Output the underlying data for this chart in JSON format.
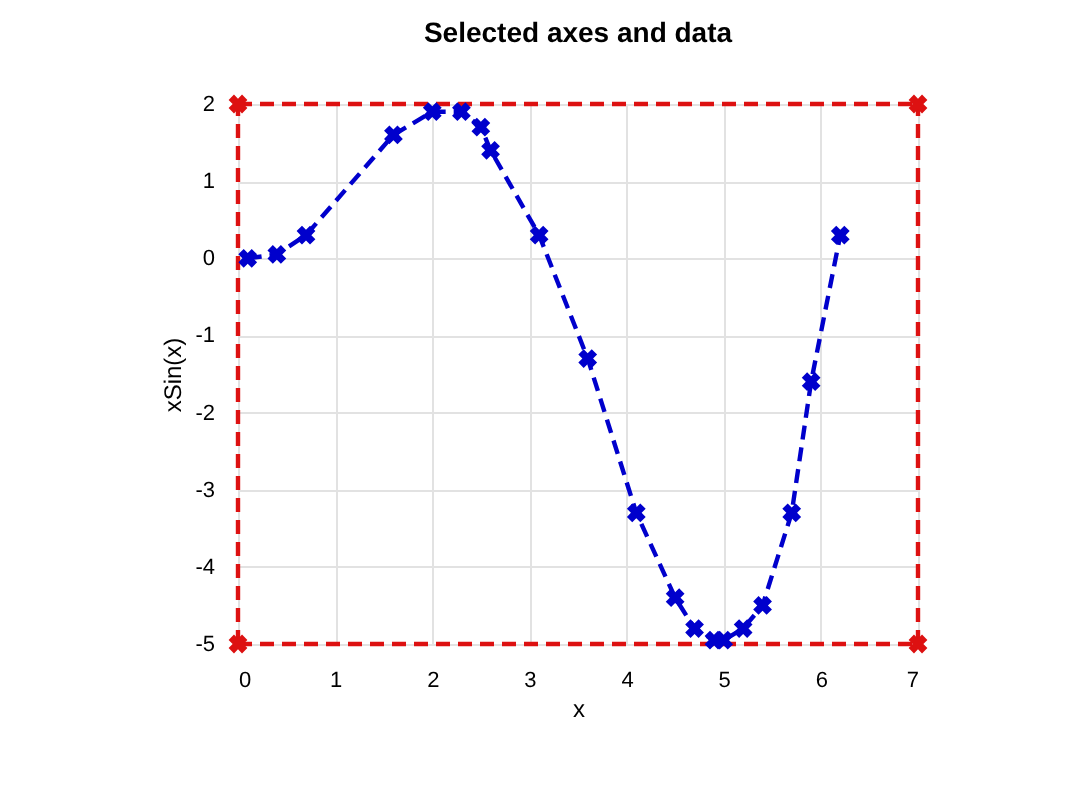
{
  "chart_data": {
    "type": "line",
    "title": "Selected axes and data",
    "xlabel": "x",
    "ylabel": "xSin(x)",
    "xlim": [
      0,
      7
    ],
    "xticks": [
      0,
      1,
      2,
      3,
      4,
      5,
      6,
      7
    ],
    "ylim": [
      -5,
      2
    ],
    "yticks": [
      -5,
      -4,
      -3,
      -2,
      -1,
      0,
      1,
      2
    ],
    "grid": true,
    "marker": "cross",
    "line_style": "dashed",
    "series": [
      {
        "color": "#0000cc",
        "x": [
          0.1,
          0.4,
          0.7,
          1.6,
          2.0,
          2.3,
          2.5,
          2.6,
          3.1,
          3.6,
          4.1,
          4.5,
          4.7,
          4.9,
          5.0,
          5.2,
          5.4,
          5.7,
          5.9,
          6.2
        ],
        "values": [
          0,
          0.05,
          0.3,
          1.6,
          1.9,
          1.9,
          1.7,
          1.4,
          0.3,
          -1.3,
          -3.3,
          -4.4,
          -4.8,
          -4.95,
          -4.95,
          -4.8,
          -4.5,
          -3.3,
          -1.6,
          0.3
        ]
      },
      {
        "type": "scatter",
        "color": "#dd1111",
        "x": [
          0,
          0,
          7,
          7
        ],
        "values": [
          -5,
          2,
          2,
          -5
        ]
      }
    ],
    "ref_lines": [
      {
        "axis": "x",
        "value": 0,
        "color": "#dd1111",
        "line_style": "dashed"
      },
      {
        "axis": "x",
        "value": 7,
        "color": "#dd1111",
        "line_style": "dashed"
      },
      {
        "axis": "y",
        "value": -5,
        "color": "#dd1111",
        "line_style": "dashed"
      },
      {
        "axis": "y",
        "value": 2,
        "color": "#dd1111",
        "line_style": "dashed"
      }
    ]
  }
}
